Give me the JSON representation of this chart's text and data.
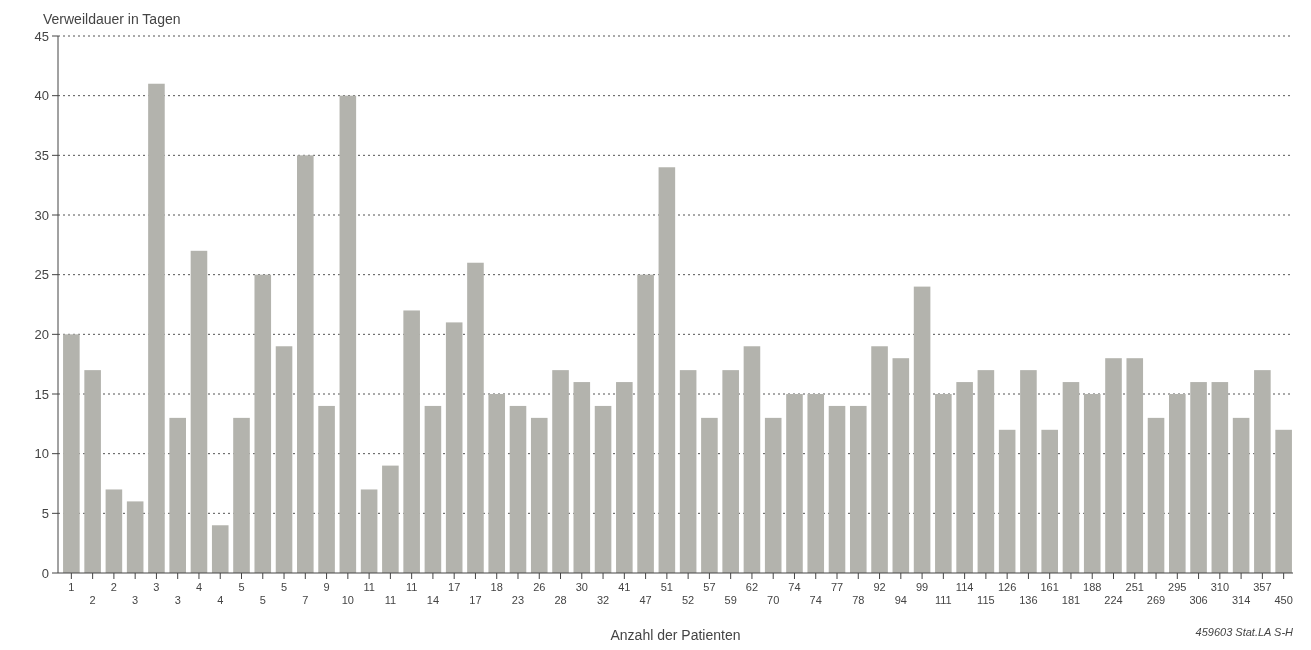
{
  "chart_data": {
    "type": "bar",
    "xlabel": "Anzahl der Patienten",
    "ylabel": "Verweildauer in Tagen",
    "categories": [
      "1",
      "2",
      "2",
      "3",
      "3",
      "3",
      "4",
      "4",
      "5",
      "5",
      "5",
      "7",
      "9",
      "10",
      "11",
      "11",
      "11",
      "14",
      "17",
      "17",
      "18",
      "23",
      "26",
      "28",
      "30",
      "32",
      "41",
      "47",
      "51",
      "52",
      "57",
      "59",
      "62",
      "70",
      "74",
      "74",
      "77",
      "78",
      "92",
      "94",
      "99",
      "111",
      "114",
      "115",
      "126",
      "136",
      "161",
      "181",
      "188",
      "224",
      "251",
      "269",
      "295",
      "306",
      "310",
      "314",
      "357",
      "450"
    ],
    "values": [
      20,
      17,
      7,
      6,
      41,
      13,
      27,
      4,
      13,
      25,
      19,
      35,
      14,
      40,
      7,
      9,
      22,
      14,
      21,
      26,
      15,
      14,
      13,
      17,
      16,
      14,
      16,
      25,
      34,
      17,
      13,
      17,
      19,
      13,
      15,
      15,
      14,
      14,
      19,
      18,
      24,
      15,
      16,
      17,
      12,
      17,
      12,
      16,
      15,
      18,
      18,
      13,
      15,
      16,
      16,
      13,
      17,
      12
    ],
    "color": "#b3b3ad",
    "ylim": [
      0,
      45
    ],
    "yticks": [
      0,
      5,
      10,
      15,
      20,
      25,
      30,
      35,
      40,
      45
    ],
    "grid": "y",
    "annotations": [
      "459603 Stat.LA S-H"
    ]
  }
}
